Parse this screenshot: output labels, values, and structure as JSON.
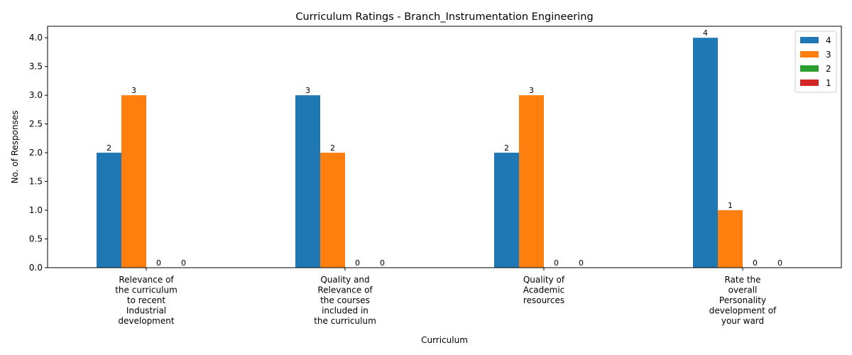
{
  "chart_data": {
    "type": "bar",
    "title": "Curriculum Ratings - Branch_Instrumentation Engineering",
    "xlabel": "Curriculum",
    "ylabel": "No. of Responses",
    "ylim": [
      0,
      4.2
    ],
    "yticks": [
      "0.0",
      "0.5",
      "1.0",
      "1.5",
      "2.0",
      "2.5",
      "3.0",
      "3.5",
      "4.0"
    ],
    "categories": [
      [
        "Relevance of",
        "the curriculum",
        "to recent",
        "Industrial",
        "development"
      ],
      [
        "Quality and",
        "Relevance of",
        "the courses",
        "included in",
        "the curriculum"
      ],
      [
        "Quality of",
        "Academic",
        "resources"
      ],
      [
        "Rate the",
        "overall",
        "Personality",
        "development of",
        "your ward"
      ]
    ],
    "series": [
      {
        "name": "4",
        "color": "#1f77b4",
        "values": [
          2,
          3,
          2,
          4
        ]
      },
      {
        "name": "3",
        "color": "#ff7f0e",
        "values": [
          3,
          2,
          3,
          1
        ]
      },
      {
        "name": "2",
        "color": "#2ca02c",
        "values": [
          0,
          0,
          0,
          0
        ]
      },
      {
        "name": "1",
        "color": "#d62728",
        "values": [
          0,
          0,
          0,
          0
        ]
      }
    ],
    "legend_position": "top-right",
    "grid": false
  }
}
